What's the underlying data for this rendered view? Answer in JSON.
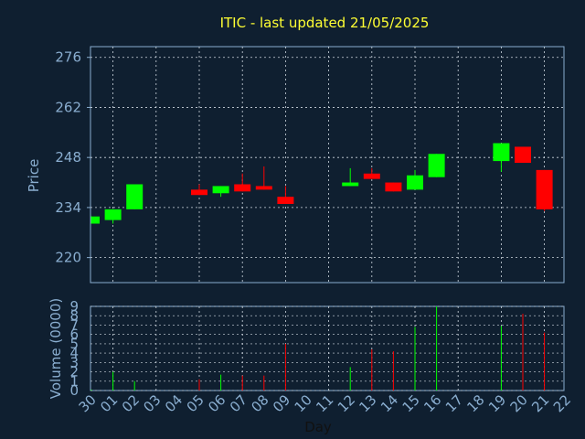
{
  "chart_data": [
    {
      "type": "candlestick",
      "title": "ITIC - last updated 21/05/2025",
      "ylabel": "Price",
      "ylim": [
        213,
        279
      ],
      "yticks": [
        220,
        234,
        248,
        262,
        276
      ],
      "grid": true,
      "up_color": "#00ff00",
      "down_color": "#ff0000",
      "candles": [
        {
          "day": "30",
          "open": 229.5,
          "close": 231.5,
          "high": 231.5,
          "low": 229.5
        },
        {
          "day": "01",
          "open": 230.5,
          "close": 233.5,
          "high": 233.5,
          "low": 229.5
        },
        {
          "day": "02",
          "open": 233.5,
          "close": 240.5,
          "high": 240.5,
          "low": 233.5
        },
        {
          "day": "05",
          "open": 239.0,
          "close": 237.5,
          "high": 240.5,
          "low": 237.5
        },
        {
          "day": "06",
          "open": 238.0,
          "close": 240.0,
          "high": 240.0,
          "low": 237.0
        },
        {
          "day": "07",
          "open": 240.5,
          "close": 238.5,
          "high": 243.5,
          "low": 238.5
        },
        {
          "day": "08",
          "open": 240.0,
          "close": 239.0,
          "high": 245.5,
          "low": 239.0
        },
        {
          "day": "09",
          "open": 237.0,
          "close": 235.0,
          "high": 240.0,
          "low": 235.0
        },
        {
          "day": "12",
          "open": 240.0,
          "close": 241.0,
          "high": 245.0,
          "low": 240.0
        },
        {
          "day": "13",
          "open": 243.5,
          "close": 242.0,
          "high": 245.0,
          "low": 242.0
        },
        {
          "day": "14",
          "open": 241.0,
          "close": 238.5,
          "high": 241.0,
          "low": 238.5
        },
        {
          "day": "15",
          "open": 239.0,
          "close": 243.0,
          "high": 244.5,
          "low": 239.0
        },
        {
          "day": "16",
          "open": 242.5,
          "close": 249.0,
          "high": 249.0,
          "low": 242.5
        },
        {
          "day": "19",
          "open": 247.0,
          "close": 252.0,
          "high": 252.0,
          "low": 244.0
        },
        {
          "day": "20",
          "open": 251.0,
          "close": 246.5,
          "high": 251.0,
          "low": 246.5
        },
        {
          "day": "21",
          "open": 244.5,
          "close": 233.5,
          "high": 244.5,
          "low": 233.0
        }
      ]
    },
    {
      "type": "bar",
      "ylabel": "Volume (0000)",
      "xlabel": "Day",
      "ylim": [
        0,
        9
      ],
      "yticks": [
        "0",
        "1",
        "2",
        "3",
        "4",
        "5",
        "6",
        "7",
        "8",
        "9"
      ],
      "categories": [
        "30",
        "01",
        "02",
        "03",
        "04",
        "05",
        "06",
        "07",
        "08",
        "09",
        "10",
        "11",
        "12",
        "13",
        "14",
        "15",
        "16",
        "17",
        "18",
        "19",
        "20",
        "21",
        "22"
      ],
      "values": [
        0.1,
        2.0,
        1.0,
        0,
        0,
        1.2,
        1.7,
        1.6,
        1.6,
        5.0,
        0,
        0,
        2.5,
        4.4,
        4.2,
        6.8,
        9.0,
        0,
        0,
        6.9,
        8.2,
        6.2,
        0
      ],
      "colors": [
        "up",
        "up",
        "up",
        "none",
        "none",
        "down",
        "up",
        "down",
        "down",
        "down",
        "none",
        "none",
        "up",
        "down",
        "down",
        "up",
        "up",
        "none",
        "none",
        "up",
        "down",
        "down",
        "none"
      ]
    }
  ]
}
